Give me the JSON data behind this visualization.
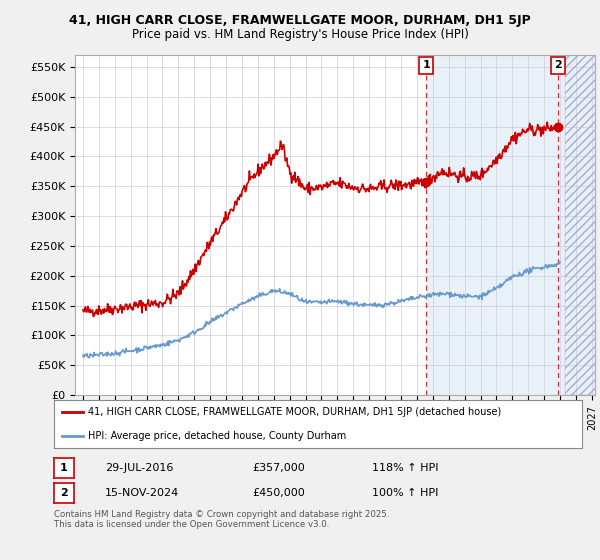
{
  "title_line1": "41, HIGH CARR CLOSE, FRAMWELLGATE MOOR, DURHAM, DH1 5JP",
  "title_line2": "Price paid vs. HM Land Registry's House Price Index (HPI)",
  "ylabel_ticks": [
    "£0",
    "£50K",
    "£100K",
    "£150K",
    "£200K",
    "£250K",
    "£300K",
    "£350K",
    "£400K",
    "£450K",
    "£500K",
    "£550K"
  ],
  "ytick_values": [
    0,
    50000,
    100000,
    150000,
    200000,
    250000,
    300000,
    350000,
    400000,
    450000,
    500000,
    550000
  ],
  "ylim": [
    0,
    570000
  ],
  "xlim_start": 1994.5,
  "xlim_end": 2027.2,
  "xtick_years": [
    1995,
    1996,
    1997,
    1998,
    1999,
    2000,
    2001,
    2002,
    2003,
    2004,
    2005,
    2006,
    2007,
    2008,
    2009,
    2010,
    2011,
    2012,
    2013,
    2014,
    2015,
    2016,
    2017,
    2018,
    2019,
    2020,
    2021,
    2022,
    2023,
    2024,
    2025,
    2026,
    2027
  ],
  "red_line_color": "#cc0000",
  "blue_line_color": "#6699cc",
  "vline_color": "#cc0000",
  "plot_bg_light_blue": "#e8f0f8",
  "plot_bg_white": "#ffffff",
  "hatch_start": 2025.3,
  "marker1_x": 2016.58,
  "marker1_y": 357000,
  "marker2_x": 2024.88,
  "marker2_y": 450000,
  "marker1_label": "1",
  "marker2_label": "2",
  "annotation1": "29-JUL-2016",
  "annotation1_price": "£357,000",
  "annotation1_hpi": "118% ↑ HPI",
  "annotation2": "15-NOV-2024",
  "annotation2_price": "£450,000",
  "annotation2_hpi": "100% ↑ HPI",
  "legend_red": "41, HIGH CARR CLOSE, FRAMWELLGATE MOOR, DURHAM, DH1 5JP (detached house)",
  "legend_blue": "HPI: Average price, detached house, County Durham",
  "footer": "Contains HM Land Registry data © Crown copyright and database right 2025.\nThis data is licensed under the Open Government Licence v3.0.",
  "bg_color": "#f0f0f0",
  "plot_bg_color": "#ffffff"
}
